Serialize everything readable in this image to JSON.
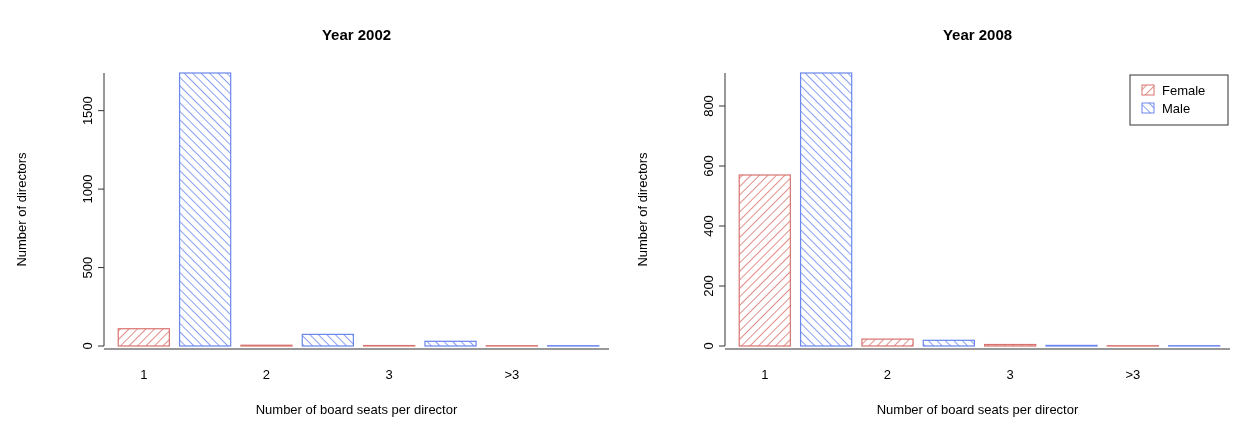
{
  "chart_data": [
    {
      "type": "bar",
      "title": "Year 2002",
      "xlabel": "Number of board seats per director",
      "ylabel": "Number of directors",
      "categories": [
        "1",
        "2",
        "3",
        ">3"
      ],
      "series": [
        {
          "color": "#d9736f",
          "values": [
            110,
            5,
            3,
            2
          ]
        },
        {
          "color": "#6b86ee",
          "values": [
            1740,
            74,
            30,
            2
          ]
        }
      ],
      "ylim": [
        0,
        1740
      ],
      "yticks": [
        0,
        500,
        1000,
        1500
      ],
      "legend": false
    },
    {
      "type": "bar",
      "title": "Year 2008",
      "xlabel": "Number of board seats per director",
      "ylabel": "Number of directors",
      "categories": [
        "1",
        "2",
        "3",
        ">3"
      ],
      "series": [
        {
          "name": "Female",
          "color": "#d9736f",
          "values": [
            570,
            23,
            5,
            1
          ]
        },
        {
          "name": "Male",
          "color": "#6b86ee",
          "values": [
            910,
            19,
            2,
            1
          ]
        }
      ],
      "ylim": [
        0,
        910
      ],
      "yticks": [
        0,
        200,
        400,
        600,
        800
      ],
      "legend": "top right"
    }
  ]
}
